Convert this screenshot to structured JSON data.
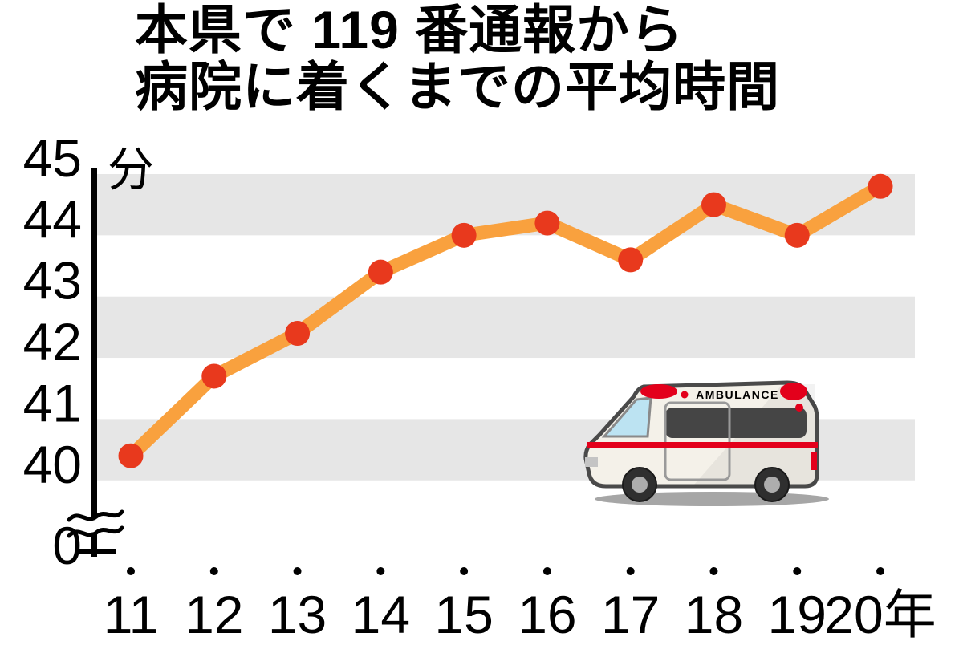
{
  "title": {
    "line1": "本県で 119 番通報から",
    "line2": "病院に着くまでの平均時間"
  },
  "chart_data": {
    "type": "line",
    "title": "本県で119番通報から病院に着くまでの平均時間",
    "unit_label": "分",
    "categories": [
      "11",
      "12",
      "13",
      "14",
      "15",
      "16",
      "17",
      "18",
      "19",
      "20年"
    ],
    "values": [
      40.4,
      41.7,
      42.4,
      43.4,
      44.0,
      44.2,
      43.6,
      44.5,
      44.0,
      44.8
    ],
    "yticks": [
      45,
      44,
      43,
      42,
      41,
      40
    ],
    "y_axis_break_label": "0",
    "ylim": [
      40,
      45
    ],
    "axis_break": true,
    "grid": "alternating horizontal gray bands",
    "legend": "none",
    "colors": {
      "line": "#F9A13E",
      "marker": "#E8391D",
      "band": "#E6E6E6",
      "axis": "#000000",
      "text": "#000000"
    }
  },
  "ambulance": {
    "label": "AMBULANCE",
    "body_color": "#F4F1E9",
    "stripe_color": "#E3001B"
  }
}
